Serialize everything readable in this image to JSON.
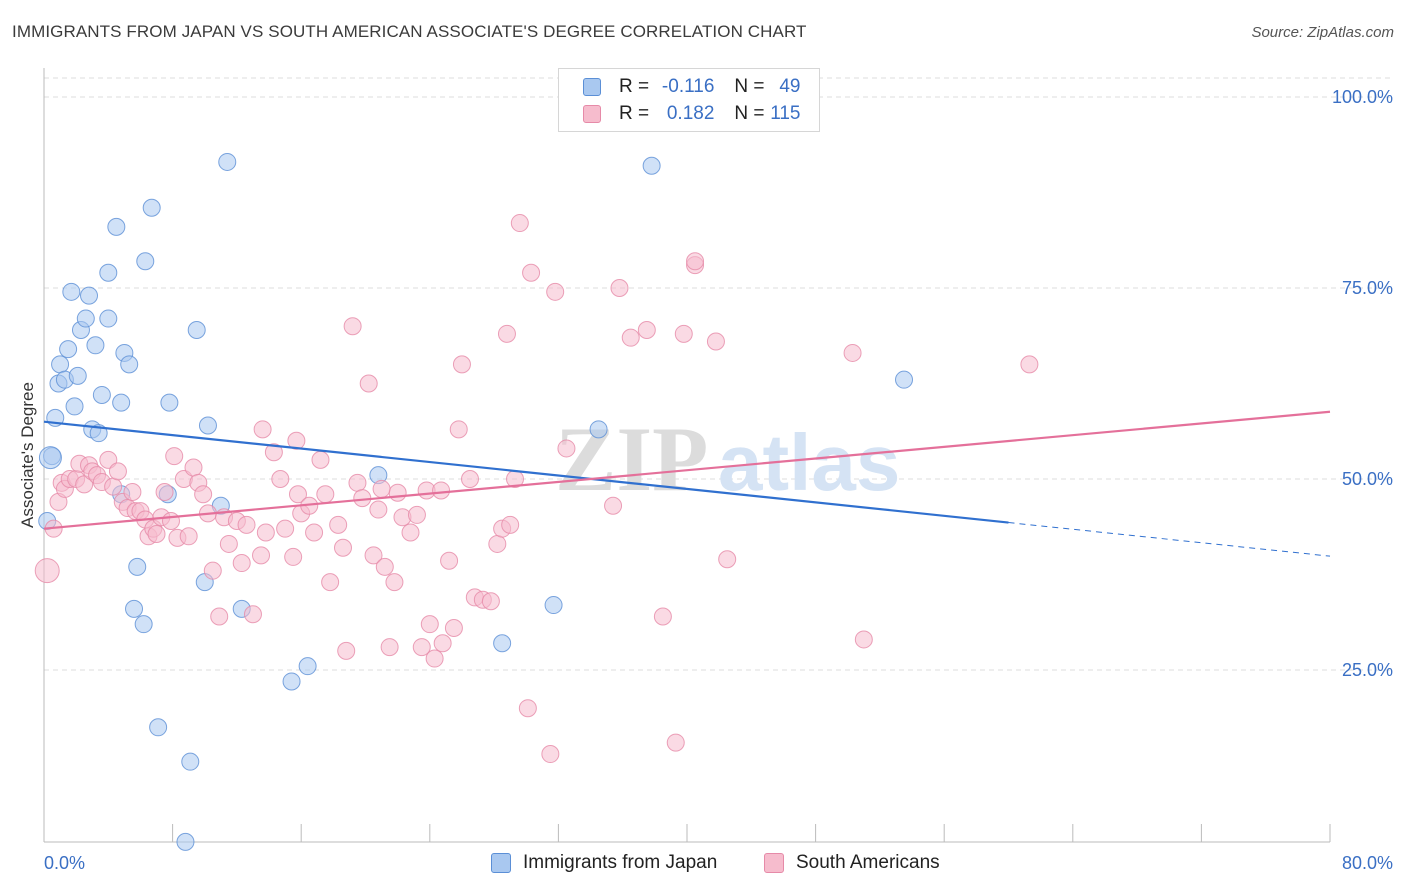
{
  "header": {
    "title": "IMMIGRANTS FROM JAPAN VS SOUTH AMERICAN ASSOCIATE'S DEGREE CORRELATION CHART",
    "source": "Source: ZipAtlas.com"
  },
  "legend": {
    "r_label": "R =",
    "n_label": "N =",
    "rows": [
      {
        "r": "-0.116",
        "n": "49",
        "color": "#a9c8f0",
        "border": "#5b8fd6"
      },
      {
        "r": "0.182",
        "n": "115",
        "color": "#f6bccd",
        "border": "#e68aa8"
      }
    ]
  },
  "watermark": {
    "part1": "ZIP",
    "part2": "atlas"
  },
  "chart_data": {
    "type": "scatter",
    "title": "IMMIGRANTS FROM JAPAN VS SOUTH AMERICAN ASSOCIATE'S DEGREE CORRELATION CHART",
    "xlabel": "",
    "ylabel": "Associate's Degree",
    "xlim": [
      0,
      80
    ],
    "ylim": [
      0,
      100
    ],
    "x_tick_labels": [
      "0.0%",
      "80.0%"
    ],
    "y_tick_labels": [
      "25.0%",
      "50.0%",
      "75.0%",
      "100.0%"
    ],
    "y_ticks": [
      25,
      50,
      75,
      100
    ],
    "grid": true,
    "legend_position": "top-center",
    "series": [
      {
        "name": "Immigrants from Japan",
        "color": "#a9c8f0",
        "stroke": "#5b8fd6",
        "trend_color": "#3070cf",
        "trend": {
          "x0": 0,
          "y0": 57.5,
          "x1": 60,
          "y1": 44.3,
          "dash_to_x": 80,
          "dash_to_y": 39.9
        },
        "points": [
          [
            0.5,
            53
          ],
          [
            0.7,
            58
          ],
          [
            0.9,
            62.5
          ],
          [
            1.0,
            65
          ],
          [
            1.3,
            63
          ],
          [
            1.5,
            67
          ],
          [
            1.7,
            74.5
          ],
          [
            1.9,
            59.5
          ],
          [
            2.1,
            63.5
          ],
          [
            2.3,
            69.5
          ],
          [
            2.6,
            71
          ],
          [
            2.8,
            74
          ],
          [
            3.0,
            56.5
          ],
          [
            3.2,
            67.5
          ],
          [
            3.4,
            56
          ],
          [
            3.6,
            61
          ],
          [
            4.0,
            71
          ],
          [
            4.0,
            77
          ],
          [
            4.5,
            83
          ],
          [
            4.8,
            48
          ],
          [
            4.8,
            60
          ],
          [
            5.0,
            66.5
          ],
          [
            5.3,
            65
          ],
          [
            5.8,
            38.5
          ],
          [
            6.2,
            31
          ],
          [
            5.6,
            33
          ],
          [
            6.3,
            78.5
          ],
          [
            6.7,
            85.5
          ],
          [
            7.1,
            17.5
          ],
          [
            7.7,
            48
          ],
          [
            7.8,
            60
          ],
          [
            8.8,
            2.5
          ],
          [
            9.1,
            13
          ],
          [
            9.5,
            69.5
          ],
          [
            10.0,
            36.5
          ],
          [
            10.2,
            57
          ],
          [
            11.0,
            46.5
          ],
          [
            11.4,
            91.5
          ],
          [
            12.3,
            33
          ],
          [
            15.4,
            23.5
          ],
          [
            16.4,
            25.5
          ],
          [
            20.8,
            50.5
          ],
          [
            28.5,
            28.5
          ],
          [
            31.7,
            33.5
          ],
          [
            34.5,
            56.5
          ],
          [
            37.8,
            91
          ],
          [
            53.5,
            63
          ],
          [
            0.2,
            44.5
          ],
          [
            0.4,
            52.8
          ]
        ]
      },
      {
        "name": "South Americans",
        "color": "#f6bccd",
        "stroke": "#e68aa8",
        "trend_color": "#e4709a",
        "trend": {
          "x0": 0,
          "y0": 43.5,
          "x1": 80,
          "y1": 58.8
        },
        "points": [
          [
            0.2,
            38
          ],
          [
            0.6,
            43.5
          ],
          [
            0.9,
            47
          ],
          [
            1.1,
            49.5
          ],
          [
            1.3,
            48.7
          ],
          [
            1.6,
            50
          ],
          [
            2.0,
            50
          ],
          [
            2.2,
            52
          ],
          [
            2.5,
            49.3
          ],
          [
            2.8,
            51.8
          ],
          [
            3.0,
            51
          ],
          [
            3.3,
            50.5
          ],
          [
            3.6,
            49.6
          ],
          [
            4.0,
            52.5
          ],
          [
            4.3,
            49
          ],
          [
            4.6,
            51
          ],
          [
            4.9,
            47
          ],
          [
            5.2,
            46.2
          ],
          [
            5.5,
            48.3
          ],
          [
            5.7,
            45.8
          ],
          [
            6.0,
            45.8
          ],
          [
            6.3,
            44.7
          ],
          [
            6.5,
            42.5
          ],
          [
            6.8,
            43.5
          ],
          [
            7.0,
            42.8
          ],
          [
            7.3,
            45
          ],
          [
            7.5,
            48.3
          ],
          [
            7.9,
            44.5
          ],
          [
            8.1,
            53
          ],
          [
            8.3,
            42.3
          ],
          [
            8.7,
            50
          ],
          [
            9.0,
            42.5
          ],
          [
            9.3,
            51.5
          ],
          [
            9.6,
            49.5
          ],
          [
            9.9,
            48
          ],
          [
            10.2,
            45.5
          ],
          [
            10.5,
            38
          ],
          [
            10.9,
            32
          ],
          [
            11.2,
            45
          ],
          [
            11.5,
            41.5
          ],
          [
            12.0,
            44.5
          ],
          [
            12.3,
            39
          ],
          [
            12.6,
            44
          ],
          [
            13.0,
            32.3
          ],
          [
            13.5,
            40
          ],
          [
            13.8,
            43
          ],
          [
            14.3,
            53.5
          ],
          [
            14.7,
            50
          ],
          [
            15.0,
            43.5
          ],
          [
            15.5,
            39.8
          ],
          [
            15.8,
            48
          ],
          [
            16.0,
            45.5
          ],
          [
            16.5,
            46.5
          ],
          [
            16.8,
            43
          ],
          [
            17.2,
            52.5
          ],
          [
            17.5,
            48
          ],
          [
            17.8,
            36.5
          ],
          [
            18.3,
            44
          ],
          [
            18.6,
            41
          ],
          [
            18.8,
            27.5
          ],
          [
            19.2,
            70
          ],
          [
            19.5,
            49.5
          ],
          [
            19.8,
            47.5
          ],
          [
            20.2,
            62.5
          ],
          [
            20.5,
            40
          ],
          [
            20.8,
            46
          ],
          [
            21.2,
            38.5
          ],
          [
            21.5,
            28
          ],
          [
            21.8,
            36.5
          ],
          [
            22.0,
            48.2
          ],
          [
            22.3,
            45
          ],
          [
            22.8,
            43
          ],
          [
            23.2,
            45.3
          ],
          [
            23.5,
            28
          ],
          [
            23.8,
            48.5
          ],
          [
            24.0,
            31
          ],
          [
            24.3,
            26.5
          ],
          [
            24.8,
            28.5
          ],
          [
            25.2,
            39.3
          ],
          [
            25.5,
            30.5
          ],
          [
            25.8,
            56.5
          ],
          [
            26.0,
            65
          ],
          [
            26.5,
            50
          ],
          [
            26.8,
            34.5
          ],
          [
            27.3,
            34.2
          ],
          [
            27.8,
            34
          ],
          [
            28.2,
            41.5
          ],
          [
            28.5,
            43.5
          ],
          [
            28.8,
            69
          ],
          [
            29.0,
            44
          ],
          [
            29.3,
            50
          ],
          [
            29.6,
            83.5
          ],
          [
            30.1,
            20
          ],
          [
            30.3,
            77
          ],
          [
            31.5,
            14
          ],
          [
            31.8,
            74.5
          ],
          [
            32.5,
            54
          ],
          [
            35.4,
            46.5
          ],
          [
            35.8,
            75
          ],
          [
            36.5,
            68.5
          ],
          [
            37.5,
            69.5
          ],
          [
            38.5,
            32
          ],
          [
            39.3,
            15.5
          ],
          [
            39.8,
            69
          ],
          [
            40.5,
            78
          ],
          [
            41.8,
            68
          ],
          [
            42.5,
            39.5
          ],
          [
            50.3,
            66.5
          ],
          [
            51.0,
            29
          ],
          [
            61.3,
            65
          ],
          [
            21.0,
            48.7
          ],
          [
            24.7,
            48.5
          ],
          [
            15.7,
            55
          ],
          [
            13.6,
            56.5
          ],
          [
            40.5,
            78.5
          ]
        ]
      }
    ]
  },
  "bottom_legend": {
    "items": [
      {
        "label": "Immigrants from Japan"
      },
      {
        "label": "South Americans"
      }
    ]
  },
  "colors": {
    "axis_label": "#3a6fc4",
    "grid": "#dddddd",
    "axis": "#bbbbbb"
  }
}
